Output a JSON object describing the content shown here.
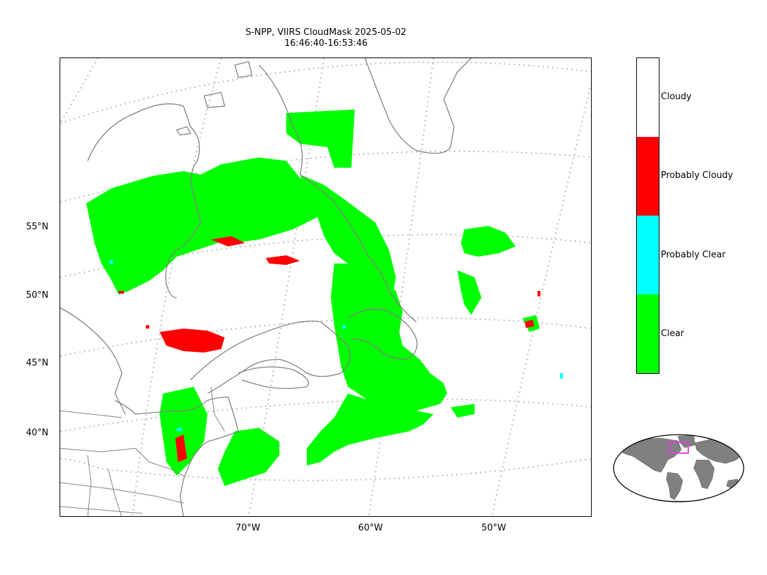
{
  "title": {
    "line1": "S-NPP, VIIRS CloudMask 2025-05-02",
    "line2": "16:46:40-16:53:46"
  },
  "axes": {
    "lat_labels": [
      "55°N",
      "50°N",
      "45°N",
      "40°N"
    ],
    "lon_labels": [
      "70°W",
      "60°W",
      "50°W"
    ]
  },
  "colorbar": {
    "categories": [
      {
        "label": "Cloudy",
        "color": "#ffffff"
      },
      {
        "label": "Probably Cloudy",
        "color": "#ff0000"
      },
      {
        "label": "Probably Clear",
        "color": "#00ffff"
      },
      {
        "label": "Clear",
        "color": "#00ff00"
      }
    ]
  },
  "colors": {
    "coastline": "#808080",
    "graticule": "#bbbbbb",
    "inset_land": "#808080",
    "inset_box": "#e040e0"
  }
}
